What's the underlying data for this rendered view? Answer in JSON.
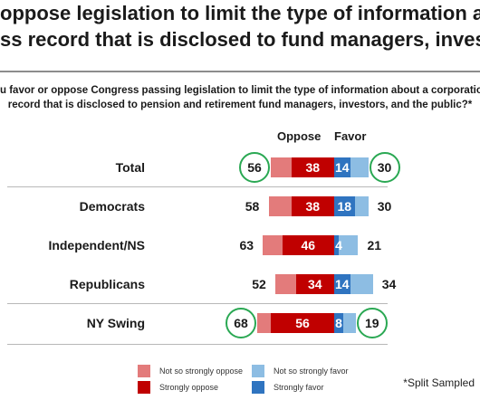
{
  "title": {
    "line1": "oppose legislation to limit the type of information about a corp",
    "line2": "ss record that is disclosed to fund managers, investors and th"
  },
  "question": {
    "line1": "u favor or oppose Congress passing legislation to limit the type of information about a corporatio",
    "line2": "record that is disclosed to pension and retirement fund managers, investors, and the public?*"
  },
  "headers": {
    "oppose": "Oppose",
    "favor": "Favor"
  },
  "colors": {
    "not_so_strongly_oppose": "#e37b7b",
    "strongly_oppose": "#c00000",
    "not_so_strongly_favor": "#8dbde3",
    "strongly_favor": "#2f74c0",
    "highlight_circle": "#2aa853"
  },
  "legend": [
    {
      "label": "Not so strongly oppose",
      "color": "#e37b7b"
    },
    {
      "label": "Strongly oppose",
      "color": "#c00000"
    },
    {
      "label": "Not so strongly favor",
      "color": "#8dbde3"
    },
    {
      "label": "Strongly favor",
      "color": "#2f74c0"
    }
  ],
  "footnote": "*Split Sampled",
  "chart_data": {
    "type": "bar",
    "orientation": "horizontal-diverging",
    "categories": [
      "Total",
      "Democrats",
      "Independent/NS",
      "Republicans",
      "NY Swing"
    ],
    "series": [
      {
        "name": "Not so strongly oppose",
        "values": [
          18,
          20,
          17,
          18,
          12
        ]
      },
      {
        "name": "Strongly oppose",
        "values": [
          38,
          38,
          46,
          34,
          56
        ]
      },
      {
        "name": "Strongly favor",
        "values": [
          14,
          18,
          4,
          14,
          8
        ]
      },
      {
        "name": "Not so strongly favor",
        "values": [
          16,
          12,
          17,
          20,
          11
        ]
      }
    ],
    "oppose_totals": [
      56,
      58,
      63,
      52,
      68
    ],
    "favor_totals": [
      30,
      30,
      21,
      34,
      19
    ],
    "highlighted_rows": [
      "Total",
      "NY Swing"
    ],
    "legend_position": "bottom"
  }
}
